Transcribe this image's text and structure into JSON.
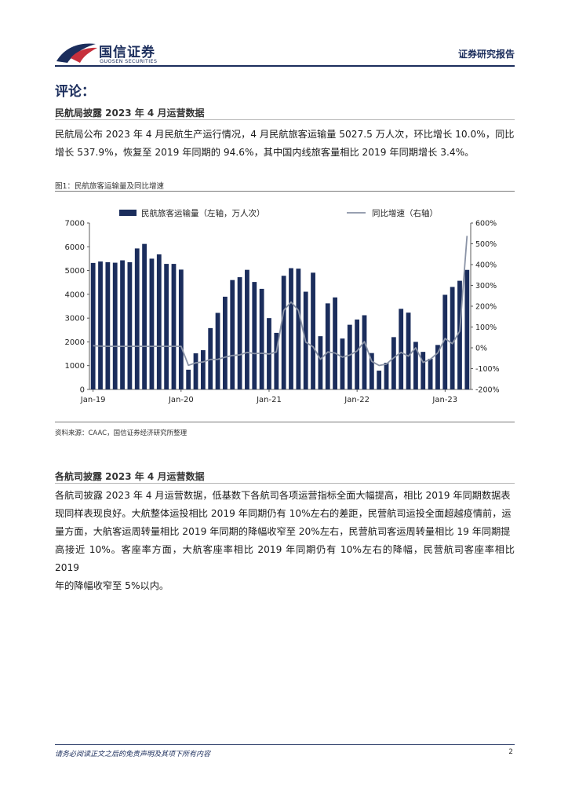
{
  "header": {
    "logo_cn": "国信证券",
    "logo_en": "GUOSEN SECURITIES",
    "report_type": "证券研究报告",
    "brand_colors": {
      "navy": "#1b2d5c",
      "red": "#c6303c"
    },
    "logo_icon": "guosen-logo-icon"
  },
  "comment_title": "评论：",
  "section1": {
    "title": "民航局披露 2023 年 4 月运营数据",
    "paragraph_lines": [
      "民航局公布 2023 年 4 月民航生产运行情况，4 月民航旅客运输量 5027.5 万人次，环比增长 10.0%，同比",
      "增长 537.9%，恢复至 2019 年同期的 94.6%，其中国内线旅客量相比 2019 年同期增长 3.4%。"
    ]
  },
  "figure": {
    "title": "图1：民航旅客运输量及同比增速",
    "source": "资料来源：CAAC，国信证券经济研究所整理"
  },
  "chart_data": {
    "type": "bar",
    "title": "",
    "legend": [
      "民航旅客运输量（左轴，万人次）",
      "同比增速（右轴）"
    ],
    "legend_placement": "top",
    "x_tick_labels": [
      "Jan-19",
      "Jan-20",
      "Jan-21",
      "Jan-22",
      "Jan-23"
    ],
    "y_left_ticks": [
      "0",
      "1000",
      "2000",
      "3000",
      "4000",
      "5000",
      "6000",
      "7000"
    ],
    "y_right_ticks": [
      "-200%",
      "-100%",
      "0%",
      "100%",
      "200%",
      "300%",
      "400%",
      "500%",
      "600%"
    ],
    "ylim_left": [
      0,
      7000
    ],
    "ylim_right": [
      -200,
      600
    ],
    "grid": false,
    "colors": {
      "bar": "#1b2d5c",
      "line": "#8a93a6"
    },
    "series": [
      {
        "name": "民航旅客运输量（左轴，万人次）",
        "axis": "left",
        "values": [
          5320,
          5380,
          5350,
          5330,
          5430,
          5350,
          5930,
          6120,
          5500,
          5680,
          5280,
          5280,
          5040,
          830,
          1520,
          1650,
          2580,
          3220,
          3900,
          4600,
          4720,
          5030,
          4520,
          4230,
          3000,
          2380,
          4780,
          5100,
          5080,
          4110,
          4910,
          2240,
          3620,
          3870,
          2140,
          2720,
          2940,
          3120,
          1530,
          790,
          1120,
          2200,
          3390,
          3230,
          2000,
          1580,
          1290,
          1870,
          3980,
          4310,
          4570,
          5027.5
        ]
      },
      {
        "name": "同比增速（右轴）",
        "axis": "right",
        "values": [
          10,
          8,
          7,
          7,
          7,
          7,
          7,
          7,
          7,
          7,
          7,
          7,
          7,
          -84,
          -72,
          -68,
          -56,
          -55,
          -45,
          -37,
          -34,
          -22,
          -28,
          -26,
          -30,
          -20,
          180,
          220,
          180,
          27,
          5,
          -55,
          -20,
          -25,
          -45,
          -35,
          -15,
          30,
          -65,
          -85,
          -78,
          -48,
          -22,
          -40,
          0,
          -70,
          -55,
          -25,
          45,
          20,
          80,
          538
        ]
      }
    ]
  },
  "section2": {
    "title": "各航司披露 2023 年 4 月运营数据",
    "paragraph_lines": [
      "各航司披露 2023 年 4 月运营数据，低基数下各航司各项运营指标全面大幅提高，相比 2019 年同期数据表",
      "现同样表现良好。大航整体运投相比 2019 年同期仍有 10%左右的差距，民营航司运投全面超越疫情前，运",
      "量方面，大航客运周转量相比 2019 年同期的降幅收窄至 20%左右，民营航司客运周转量相比 19 年同期提",
      "高接近 10%。客座率方面，大航客座率相比 2019 年同期仍有 10%左右的降幅，民营航司客座率相比 2019",
      "年的降幅收窄至 5%以内。"
    ]
  },
  "footer": {
    "disclaimer": "请务必阅读正文之后的免责声明及其项下所有内容",
    "page_number": "2"
  }
}
